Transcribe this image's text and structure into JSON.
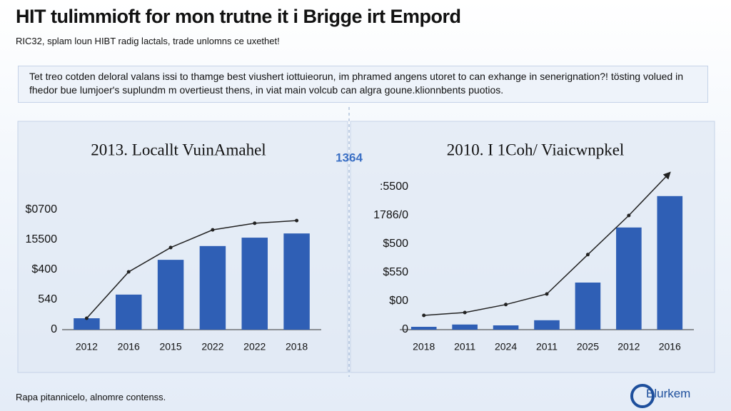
{
  "header": {
    "title": "HIT tulimmioft for mon trutne it i Brigge irt Empord",
    "subtitle": "RIC32, splam loun HIBT radig lactals, trade unlomns ce uxethet!"
  },
  "description": "Tet treo cotden deloral valans issi to thamge best viushert iottuieorun, im phramed angens utoret to can exhange in senerignation?! tösting volued in fhedor bue lumjoer's suplundm m overtieust thens, in viat main volcub can algra goune.klionnbents puotios.",
  "center_label": "1364",
  "footer": "Rapa pitannicelo, alnomre contenss.",
  "logo": "Blurkem",
  "chart_data": [
    {
      "type": "bar",
      "title": "2013. Locallt VuinAmahel",
      "categories": [
        "2012",
        "2016",
        "2015",
        "2022",
        "2022",
        "2018"
      ],
      "ylim": [
        0,
        4.5
      ],
      "yticks": [
        0,
        {
          "value": 1,
          "label": "540"
        },
        {
          "value": 2,
          "label": "$400"
        },
        {
          "value": 3,
          "label": "15500"
        },
        {
          "value": 4,
          "label": "$0700"
        }
      ],
      "series": [
        {
          "type": "bar",
          "color": "#2f5fb5",
          "values": [
            0.38,
            1.17,
            2.33,
            2.79,
            3.07,
            3.21
          ]
        },
        {
          "type": "line",
          "color": "#222222",
          "values": [
            0.38,
            1.93,
            2.74,
            3.33,
            3.55,
            3.64
          ]
        }
      ]
    },
    {
      "type": "bar",
      "title": "2010. I 1Coh/ Viaicwnpkel",
      "categories": [
        "2018",
        "2011",
        "2024",
        "2011",
        "2025",
        "2012",
        "2016"
      ],
      "ylim": [
        0,
        5.8
      ],
      "yticks": [
        0,
        {
          "value": 1,
          "label": "$00"
        },
        {
          "value": 2,
          "label": "$550"
        },
        {
          "value": 3,
          "label": "$500"
        },
        {
          "value": 4,
          "label": "1786/0"
        },
        {
          "value": 5,
          "label": ":5500"
        }
      ],
      "series": [
        {
          "type": "bar",
          "color": "#2f5fb5",
          "values": [
            0.1,
            0.18,
            0.15,
            0.33,
            1.65,
            3.58,
            4.68
          ]
        },
        {
          "type": "line",
          "color": "#222222",
          "values": [
            0.5,
            0.6,
            0.88,
            1.25,
            2.63,
            4.0,
            5.5
          ]
        }
      ]
    }
  ]
}
